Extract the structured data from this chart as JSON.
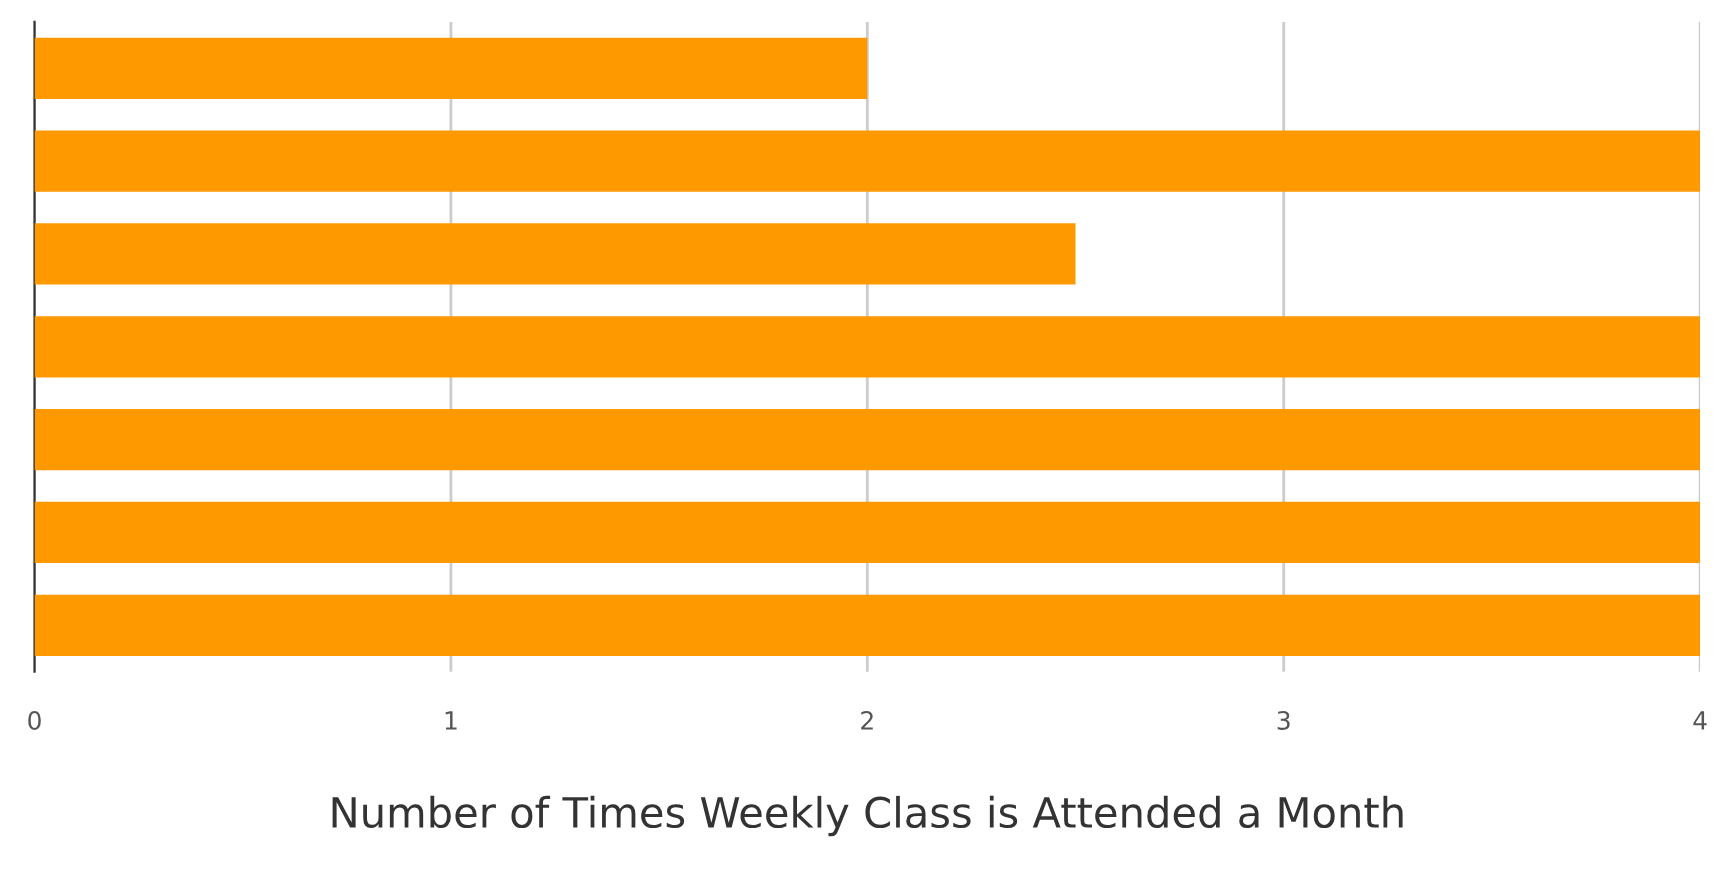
{
  "chart_data": {
    "type": "bar",
    "orientation": "horizontal",
    "xlabel": "Number of Times Weekly Class is Attended a Month",
    "categories": [
      null,
      null,
      null,
      null,
      null,
      null,
      null
    ],
    "values": [
      2,
      4,
      2.5,
      4,
      4,
      4,
      4
    ],
    "color": "#ff9900",
    "xlim": [
      0,
      4
    ],
    "xticks": [
      0,
      1,
      2,
      3,
      4
    ],
    "grid": "x",
    "legend": false
  }
}
